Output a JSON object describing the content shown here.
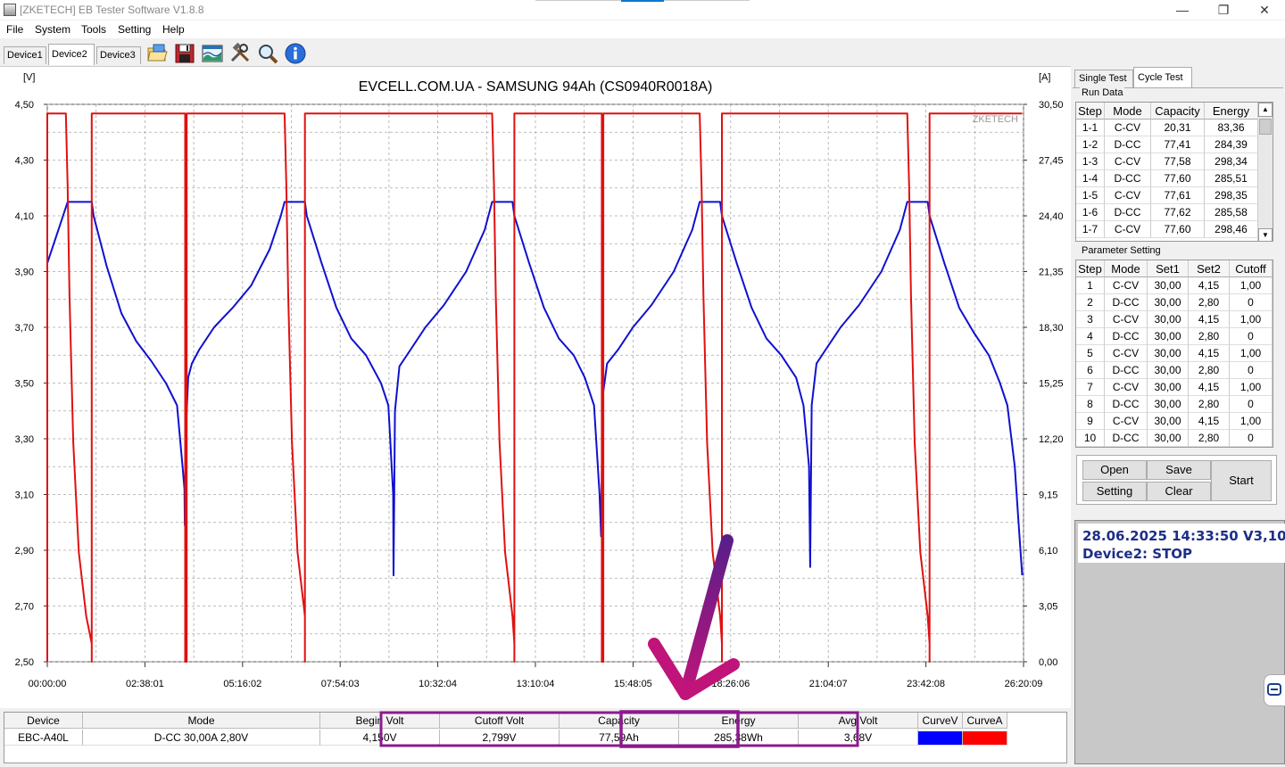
{
  "window": {
    "title": "[ZKETECH] EB Tester Software V1.8.8",
    "controls": {
      "minimize": "—",
      "maximize": "❐",
      "close": "✕"
    }
  },
  "menu": [
    "File",
    "System",
    "Tools",
    "Setting",
    "Help"
  ],
  "device_tabs": [
    {
      "label": "Device1",
      "active": false
    },
    {
      "label": "Device2",
      "active": true
    },
    {
      "label": "Device3",
      "active": false
    }
  ],
  "toolbar_icons": [
    "open-folder-icon",
    "save-disk-icon",
    "chart-image-icon",
    "tools-icon",
    "zoom-icon",
    "info-icon"
  ],
  "chart": {
    "title": "EVCELL.COM.UA - SAMSUNG 94Ah (CS0940R0018A)",
    "left_unit": "[V]",
    "right_unit": "[A]",
    "watermark": "ZKETECH",
    "left_ticks": [
      "4,50",
      "4,30",
      "4,10",
      "3,90",
      "3,70",
      "3,50",
      "3,30",
      "3,10",
      "2,90",
      "2,70",
      "2,50"
    ],
    "right_ticks": [
      "30,50",
      "27,45",
      "24,40",
      "21,35",
      "18,30",
      "15,25",
      "12,20",
      "9,15",
      "6,10",
      "3,05",
      "0,00"
    ],
    "x_ticks": [
      "00:00:00",
      "02:38:01",
      "05:16:02",
      "07:54:03",
      "10:32:04",
      "13:10:04",
      "15:48:05",
      "18:26:06",
      "21:04:07",
      "23:42:08",
      "26:20:09"
    ],
    "colors": {
      "voltage": "#1010d0",
      "current": "#e01010",
      "grid": "#a8a8a8"
    }
  },
  "chart_data": {
    "type": "line",
    "title": "EVCELL.COM.UA - SAMSUNG 94Ah (CS0940R0018A)",
    "x_unit": "hours",
    "xlim": [
      0,
      26.336
    ],
    "ylim_left": [
      2.5,
      4.5
    ],
    "ylim_right": [
      0,
      30.5
    ],
    "grid": true,
    "series": [
      {
        "name": "CurveV",
        "axis": "left",
        "color": "#1010d0",
        "points": [
          [
            0,
            3.93
          ],
          [
            0.3,
            4.05
          ],
          [
            0.55,
            4.15
          ],
          [
            1.2,
            4.15
          ],
          [
            1.25,
            4.1
          ],
          [
            1.6,
            3.92
          ],
          [
            2.0,
            3.75
          ],
          [
            2.4,
            3.65
          ],
          [
            2.8,
            3.58
          ],
          [
            3.2,
            3.5
          ],
          [
            3.5,
            3.42
          ],
          [
            3.65,
            3.2
          ],
          [
            3.7,
            3.12
          ],
          [
            3.71,
            2.99
          ],
          [
            3.73,
            3.3
          ],
          [
            3.8,
            3.52
          ],
          [
            3.9,
            3.57
          ],
          [
            4.1,
            3.62
          ],
          [
            4.5,
            3.7
          ],
          [
            5.0,
            3.77
          ],
          [
            5.5,
            3.85
          ],
          [
            6.0,
            3.98
          ],
          [
            6.3,
            4.1
          ],
          [
            6.4,
            4.15
          ],
          [
            6.95,
            4.15
          ],
          [
            7.0,
            4.1
          ],
          [
            7.4,
            3.93
          ],
          [
            7.8,
            3.77
          ],
          [
            8.2,
            3.66
          ],
          [
            8.6,
            3.6
          ],
          [
            9.0,
            3.5
          ],
          [
            9.2,
            3.42
          ],
          [
            9.33,
            3.1
          ],
          [
            9.34,
            2.81
          ],
          [
            9.38,
            3.4
          ],
          [
            9.5,
            3.56
          ],
          [
            9.8,
            3.62
          ],
          [
            10.2,
            3.7
          ],
          [
            10.7,
            3.78
          ],
          [
            11.3,
            3.9
          ],
          [
            11.8,
            4.05
          ],
          [
            12.0,
            4.15
          ],
          [
            12.55,
            4.15
          ],
          [
            12.6,
            4.1
          ],
          [
            13.0,
            3.93
          ],
          [
            13.4,
            3.77
          ],
          [
            13.8,
            3.66
          ],
          [
            14.2,
            3.6
          ],
          [
            14.5,
            3.52
          ],
          [
            14.75,
            3.42
          ],
          [
            14.9,
            3.1
          ],
          [
            14.94,
            2.95
          ],
          [
            14.98,
            3.45
          ],
          [
            15.1,
            3.57
          ],
          [
            15.4,
            3.62
          ],
          [
            15.8,
            3.7
          ],
          [
            16.3,
            3.78
          ],
          [
            16.9,
            3.9
          ],
          [
            17.4,
            4.05
          ],
          [
            17.6,
            4.15
          ],
          [
            18.15,
            4.15
          ],
          [
            18.2,
            4.1
          ],
          [
            18.6,
            3.93
          ],
          [
            19.0,
            3.77
          ],
          [
            19.4,
            3.66
          ],
          [
            19.8,
            3.6
          ],
          [
            20.2,
            3.52
          ],
          [
            20.4,
            3.42
          ],
          [
            20.55,
            3.2
          ],
          [
            20.58,
            2.84
          ],
          [
            20.62,
            3.42
          ],
          [
            20.75,
            3.57
          ],
          [
            21.0,
            3.62
          ],
          [
            21.4,
            3.7
          ],
          [
            21.9,
            3.78
          ],
          [
            22.5,
            3.9
          ],
          [
            23.0,
            4.05
          ],
          [
            23.2,
            4.15
          ],
          [
            23.75,
            4.15
          ],
          [
            23.8,
            4.1
          ],
          [
            24.2,
            3.93
          ],
          [
            24.6,
            3.77
          ],
          [
            25.0,
            3.68
          ],
          [
            25.4,
            3.6
          ],
          [
            25.7,
            3.5
          ],
          [
            25.9,
            3.42
          ],
          [
            26.1,
            3.2
          ],
          [
            26.2,
            3.0
          ],
          [
            26.3,
            2.81
          ]
        ]
      },
      {
        "name": "CurveA",
        "axis": "right",
        "color": "#e01010",
        "points": [
          [
            0,
            0
          ],
          [
            0,
            30
          ],
          [
            0.5,
            30
          ],
          [
            0.55,
            26
          ],
          [
            0.6,
            20
          ],
          [
            0.7,
            12
          ],
          [
            0.85,
            6
          ],
          [
            1.05,
            2.5
          ],
          [
            1.2,
            1
          ],
          [
            1.2,
            0
          ],
          [
            1.2,
            30
          ],
          [
            3.72,
            30
          ],
          [
            3.72,
            0
          ],
          [
            3.76,
            0
          ],
          [
            3.76,
            30
          ],
          [
            6.4,
            30
          ],
          [
            6.45,
            26
          ],
          [
            6.5,
            20
          ],
          [
            6.6,
            12
          ],
          [
            6.75,
            6
          ],
          [
            6.95,
            2.5
          ],
          [
            6.95,
            1
          ],
          [
            6.95,
            0
          ],
          [
            6.95,
            30
          ],
          [
            12.0,
            30
          ],
          [
            12.05,
            26
          ],
          [
            12.1,
            20
          ],
          [
            12.2,
            12
          ],
          [
            12.35,
            6
          ],
          [
            12.55,
            2.5
          ],
          [
            12.6,
            1
          ],
          [
            12.6,
            0
          ],
          [
            12.6,
            30
          ],
          [
            14.96,
            30
          ],
          [
            14.96,
            0
          ],
          [
            15.0,
            0
          ],
          [
            15.0,
            30
          ],
          [
            17.6,
            30
          ],
          [
            17.65,
            26
          ],
          [
            17.7,
            20
          ],
          [
            17.8,
            12
          ],
          [
            17.95,
            6
          ],
          [
            18.15,
            2.5
          ],
          [
            18.2,
            1
          ],
          [
            18.2,
            0
          ],
          [
            18.2,
            30
          ],
          [
            23.2,
            30
          ],
          [
            23.25,
            26
          ],
          [
            23.3,
            20
          ],
          [
            23.4,
            12
          ],
          [
            23.55,
            6
          ],
          [
            23.75,
            2.5
          ],
          [
            23.8,
            1
          ],
          [
            23.8,
            0
          ],
          [
            23.8,
            30
          ],
          [
            26.3,
            30
          ]
        ]
      }
    ]
  },
  "bottom_table": {
    "headers": [
      "Device",
      "Mode",
      "Begin Volt",
      "Cutoff Volt",
      "Capacity",
      "Energy",
      "Avg Volt",
      "CurveV",
      "CurveA"
    ],
    "values": [
      "EBC-A40L",
      "D-CC  30,00A  2,80V",
      "4,150V",
      "2,799V",
      "77,59Ah",
      "285,38Wh",
      "3,68V",
      "",
      ""
    ],
    "curve_colors": [
      "#0000ff",
      "#ff0000"
    ]
  },
  "right_panel": {
    "tabs": [
      {
        "label": "Single Test",
        "active": false
      },
      {
        "label": "Cycle Test",
        "active": true
      }
    ],
    "run_data": {
      "label": "Run Data",
      "headers": [
        "Step",
        "Mode",
        "Capacity",
        "Energy"
      ],
      "rows": [
        [
          "1-1",
          "C-CV",
          "20,31",
          "83,36"
        ],
        [
          "1-2",
          "D-CC",
          "77,41",
          "284,39"
        ],
        [
          "1-3",
          "C-CV",
          "77,58",
          "298,34"
        ],
        [
          "1-4",
          "D-CC",
          "77,60",
          "285,51"
        ],
        [
          "1-5",
          "C-CV",
          "77,61",
          "298,35"
        ],
        [
          "1-6",
          "D-CC",
          "77,62",
          "285,58"
        ],
        [
          "1-7",
          "C-CV",
          "77,60",
          "298,46"
        ]
      ]
    },
    "param_setting": {
      "label": "Parameter Setting",
      "headers": [
        "Step",
        "Mode",
        "Set1",
        "Set2",
        "Cutoff"
      ],
      "rows": [
        [
          "1",
          "C-CV",
          "30,00",
          "4,15",
          "1,00"
        ],
        [
          "2",
          "D-CC",
          "30,00",
          "2,80",
          "0"
        ],
        [
          "3",
          "C-CV",
          "30,00",
          "4,15",
          "1,00"
        ],
        [
          "4",
          "D-CC",
          "30,00",
          "2,80",
          "0"
        ],
        [
          "5",
          "C-CV",
          "30,00",
          "4,15",
          "1,00"
        ],
        [
          "6",
          "D-CC",
          "30,00",
          "2,80",
          "0"
        ],
        [
          "7",
          "C-CV",
          "30,00",
          "4,15",
          "1,00"
        ],
        [
          "8",
          "D-CC",
          "30,00",
          "2,80",
          "0"
        ],
        [
          "9",
          "C-CV",
          "30,00",
          "4,15",
          "1,00"
        ],
        [
          "10",
          "D-CC",
          "30,00",
          "2,80",
          "0"
        ]
      ]
    },
    "buttons": {
      "open": "Open",
      "save": "Save",
      "setting": "Setting",
      "clear": "Clear",
      "start": "Start"
    },
    "status": {
      "line1": "28.06.2025 14:33:50  V3,10",
      "line2": "Device2: STOP"
    }
  },
  "annotation": {
    "color": "#8b1a8c",
    "arrow_color": "#c0147a"
  }
}
